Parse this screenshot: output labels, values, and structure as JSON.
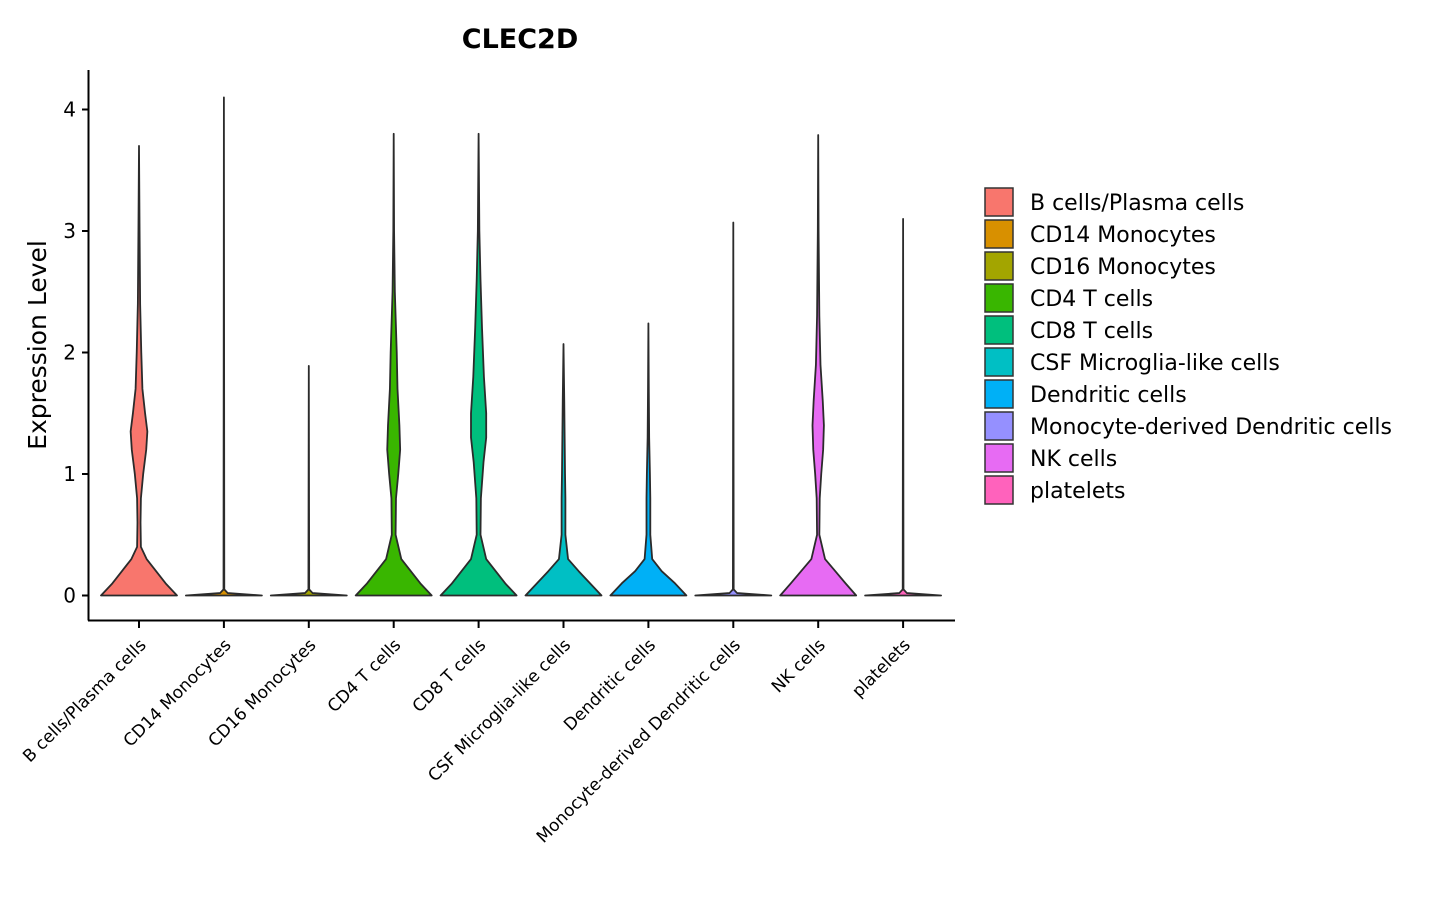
{
  "chart_data": {
    "type": "violin",
    "title": "CLEC2D",
    "xlabel": "",
    "ylabel": "Expression Level",
    "ylim": [
      -0.2,
      4.3
    ],
    "yticks": [
      0,
      1,
      2,
      3,
      4
    ],
    "grid": false,
    "legend_position": "right",
    "categories": [
      "B cells/Plasma cells",
      "CD14 Monocytes",
      "CD16 Monocytes",
      "CD4 T cells",
      "CD8 T cells",
      "CSF Microglia-like cells",
      "Dendritic cells",
      "Monocyte-derived Dendritic cells",
      "NK cells",
      "platelets"
    ],
    "colors": [
      "#F8766D",
      "#D89000",
      "#A3A500",
      "#39B600",
      "#00BF7D",
      "#00BFC4",
      "#00B0F6",
      "#9590FF",
      "#E76BF3",
      "#FF62BC"
    ],
    "max_values": [
      3.7,
      4.1,
      1.89,
      3.8,
      3.8,
      2.07,
      2.24,
      3.07,
      3.79,
      3.1
    ],
    "density_profiles": [
      [
        [
          0,
          1.0
        ],
        [
          0.1,
          0.7
        ],
        [
          0.2,
          0.45
        ],
        [
          0.3,
          0.2
        ],
        [
          0.4,
          0.05
        ],
        [
          0.6,
          0.04
        ],
        [
          0.8,
          0.05
        ],
        [
          1.0,
          0.11
        ],
        [
          1.2,
          0.19
        ],
        [
          1.35,
          0.22
        ],
        [
          1.5,
          0.16
        ],
        [
          1.7,
          0.09
        ],
        [
          2.0,
          0.06
        ],
        [
          2.4,
          0.03
        ],
        [
          3.0,
          0.015
        ],
        [
          3.7,
          0
        ]
      ],
      [
        [
          0,
          1.0
        ],
        [
          0.02,
          0.1
        ],
        [
          0.05,
          0.01
        ],
        [
          4.1,
          0
        ]
      ],
      [
        [
          0,
          1.0
        ],
        [
          0.02,
          0.1
        ],
        [
          0.05,
          0.01
        ],
        [
          1.89,
          0
        ]
      ],
      [
        [
          0,
          1.0
        ],
        [
          0.1,
          0.7
        ],
        [
          0.2,
          0.45
        ],
        [
          0.3,
          0.2
        ],
        [
          0.5,
          0.05
        ],
        [
          0.8,
          0.06
        ],
        [
          1.0,
          0.12
        ],
        [
          1.2,
          0.17
        ],
        [
          1.4,
          0.15
        ],
        [
          1.7,
          0.1
        ],
        [
          2.0,
          0.08
        ],
        [
          2.5,
          0.03
        ],
        [
          3.0,
          0.01
        ],
        [
          3.8,
          0
        ]
      ],
      [
        [
          0,
          1.0
        ],
        [
          0.1,
          0.7
        ],
        [
          0.2,
          0.45
        ],
        [
          0.3,
          0.2
        ],
        [
          0.5,
          0.05
        ],
        [
          0.8,
          0.06
        ],
        [
          1.1,
          0.13
        ],
        [
          1.3,
          0.2
        ],
        [
          1.5,
          0.2
        ],
        [
          1.8,
          0.14
        ],
        [
          2.2,
          0.09
        ],
        [
          2.6,
          0.05
        ],
        [
          3.0,
          0.02
        ],
        [
          3.8,
          0
        ]
      ],
      [
        [
          0,
          1.0
        ],
        [
          0.1,
          0.7
        ],
        [
          0.2,
          0.4
        ],
        [
          0.3,
          0.12
        ],
        [
          0.5,
          0.05
        ],
        [
          0.8,
          0.05
        ],
        [
          1.0,
          0.04
        ],
        [
          1.3,
          0.03
        ],
        [
          1.6,
          0.02
        ],
        [
          2.07,
          0
        ]
      ],
      [
        [
          0,
          1.0
        ],
        [
          0.1,
          0.7
        ],
        [
          0.2,
          0.35
        ],
        [
          0.3,
          0.1
        ],
        [
          0.5,
          0.05
        ],
        [
          0.8,
          0.05
        ],
        [
          1.0,
          0.04
        ],
        [
          1.3,
          0.02
        ],
        [
          1.7,
          0.01
        ],
        [
          2.24,
          0
        ]
      ],
      [
        [
          0,
          1.0
        ],
        [
          0.02,
          0.1
        ],
        [
          0.05,
          0.01
        ],
        [
          3.07,
          0
        ]
      ],
      [
        [
          0,
          1.0
        ],
        [
          0.1,
          0.72
        ],
        [
          0.2,
          0.45
        ],
        [
          0.3,
          0.18
        ],
        [
          0.5,
          0.03
        ],
        [
          0.8,
          0.04
        ],
        [
          1.0,
          0.08
        ],
        [
          1.2,
          0.13
        ],
        [
          1.4,
          0.15
        ],
        [
          1.6,
          0.12
        ],
        [
          1.9,
          0.06
        ],
        [
          2.3,
          0.03
        ],
        [
          3.0,
          0.01
        ],
        [
          3.79,
          0
        ]
      ],
      [
        [
          0,
          1.0
        ],
        [
          0.02,
          0.1
        ],
        [
          0.05,
          0.01
        ],
        [
          3.1,
          0
        ]
      ]
    ]
  }
}
